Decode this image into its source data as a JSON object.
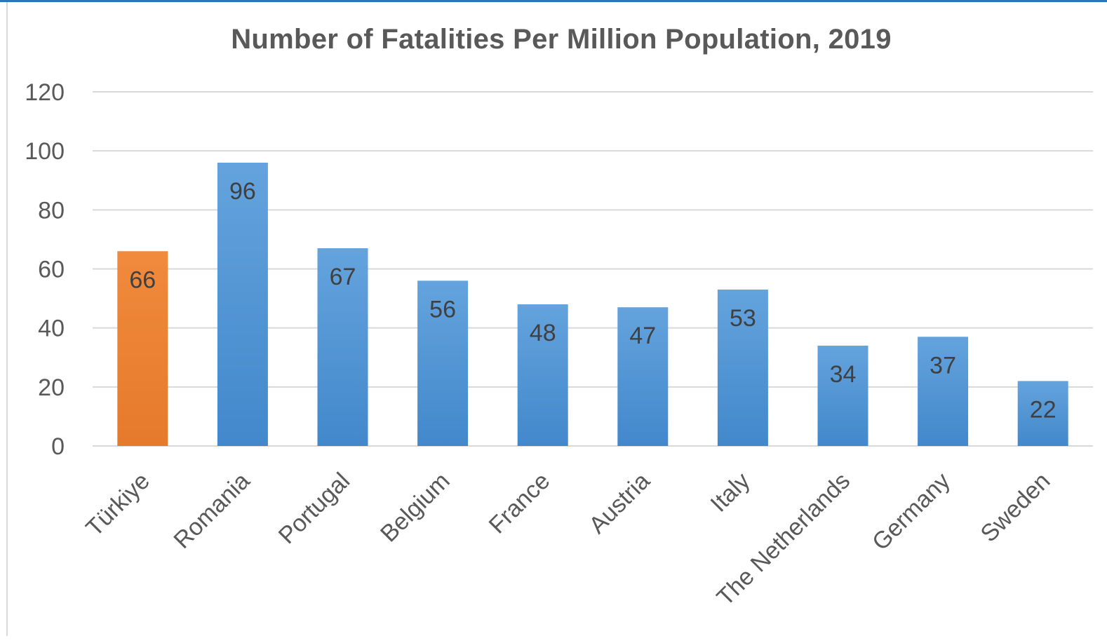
{
  "chart_data": {
    "type": "bar",
    "title": "Number of Fatalities Per Million Population, 2019",
    "xlabel": "",
    "ylabel": "",
    "categories": [
      "Türkiye",
      "Romania",
      "Portugal",
      "Belgium",
      "France",
      "Austria",
      "Italy",
      "The Netherlands",
      "Germany",
      "Sweden"
    ],
    "values": [
      66,
      96,
      67,
      56,
      48,
      47,
      53,
      34,
      37,
      22
    ],
    "ylim": [
      0,
      120
    ],
    "yticks": [
      0,
      20,
      40,
      60,
      80,
      100,
      120
    ],
    "grid": true,
    "legend": "none",
    "colors": {
      "default_bar": "#5b9bd5",
      "highlight_bar": "#ed7d31",
      "highlight_category": "Türkiye",
      "gridline": "#d9d9d9"
    }
  }
}
